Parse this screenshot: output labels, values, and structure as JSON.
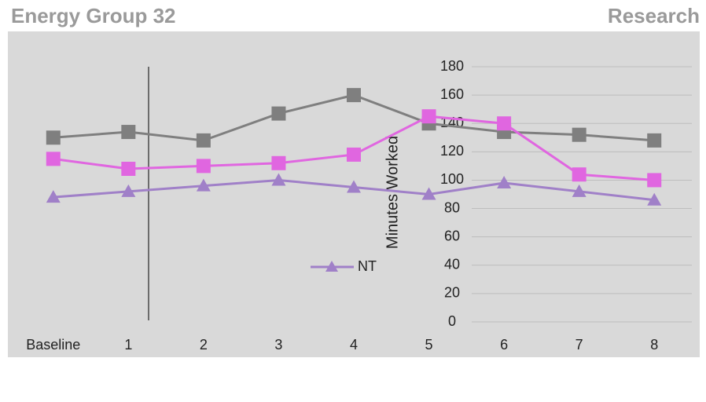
{
  "chart_data": {
    "type": "line",
    "title": "Energy Group 32",
    "subtitle": "Research",
    "y_label": "Minutes Worked",
    "categories": [
      "Baseline",
      "1",
      "2",
      "3",
      "4",
      "5",
      "6",
      "7",
      "8"
    ],
    "series": [
      {
        "color": "#7f7f7f",
        "marker": "square",
        "values": [
          130,
          134,
          128,
          147,
          160,
          140,
          134,
          132,
          128
        ]
      },
      {
        "color": "#e066e0",
        "marker": "square",
        "values": [
          115,
          108,
          110,
          112,
          118,
          145,
          140,
          104,
          100
        ]
      },
      {
        "name": "NT",
        "color": "#a080c8",
        "marker": "triangle",
        "values": [
          88,
          92,
          96,
          100,
          95,
          90,
          98,
          92,
          86
        ]
      }
    ],
    "ylim": [
      0,
      180
    ],
    "yticks": [
      0,
      20,
      40,
      60,
      80,
      100,
      120,
      140,
      160,
      180
    ],
    "grid": true
  }
}
